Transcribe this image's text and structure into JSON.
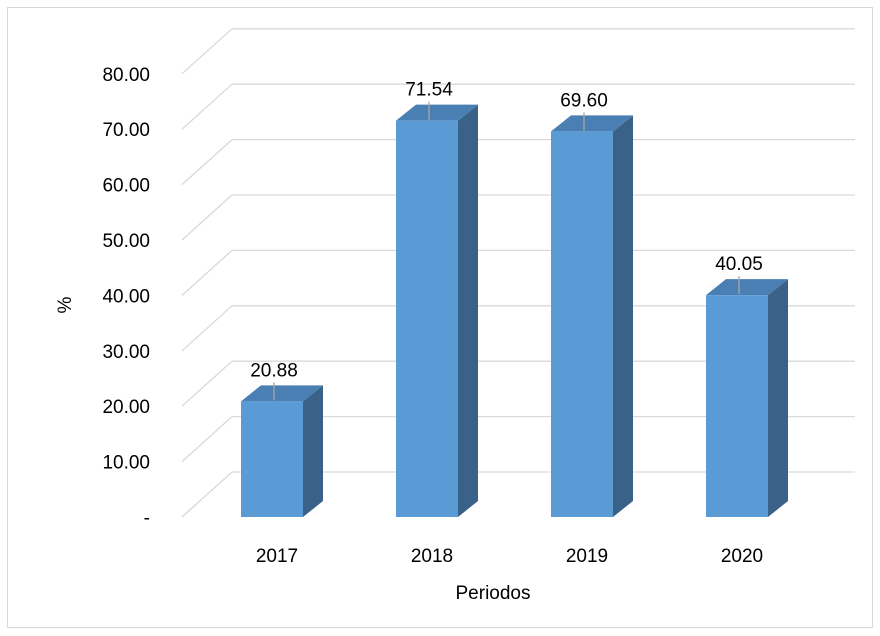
{
  "chart_data": {
    "type": "bar",
    "style": "3d-column",
    "categories": [
      "2017",
      "2018",
      "2019",
      "2020"
    ],
    "values": [
      20.88,
      71.54,
      69.6,
      40.05
    ],
    "data_labels": [
      "20.88",
      "71.54",
      "69.60",
      "40.05"
    ],
    "title": "",
    "xlabel": "Periodos",
    "ylabel": "%",
    "ylim": [
      0,
      80
    ],
    "yticks": [
      0,
      10,
      20,
      30,
      40,
      50,
      60,
      70,
      80
    ],
    "ytick_labels": [
      "-",
      "10.00",
      "20.00",
      "30.00",
      "40.00",
      "50.00",
      "60.00",
      "70.00",
      "80.00"
    ],
    "grid": true,
    "legend": "none",
    "colors": {
      "bar_front": "#5b9bd5",
      "bar_side": "#3a6289",
      "bar_top": "#4a7fb3",
      "gridline": "#d9d9d9",
      "leader_line": "#a6a6a6"
    }
  }
}
